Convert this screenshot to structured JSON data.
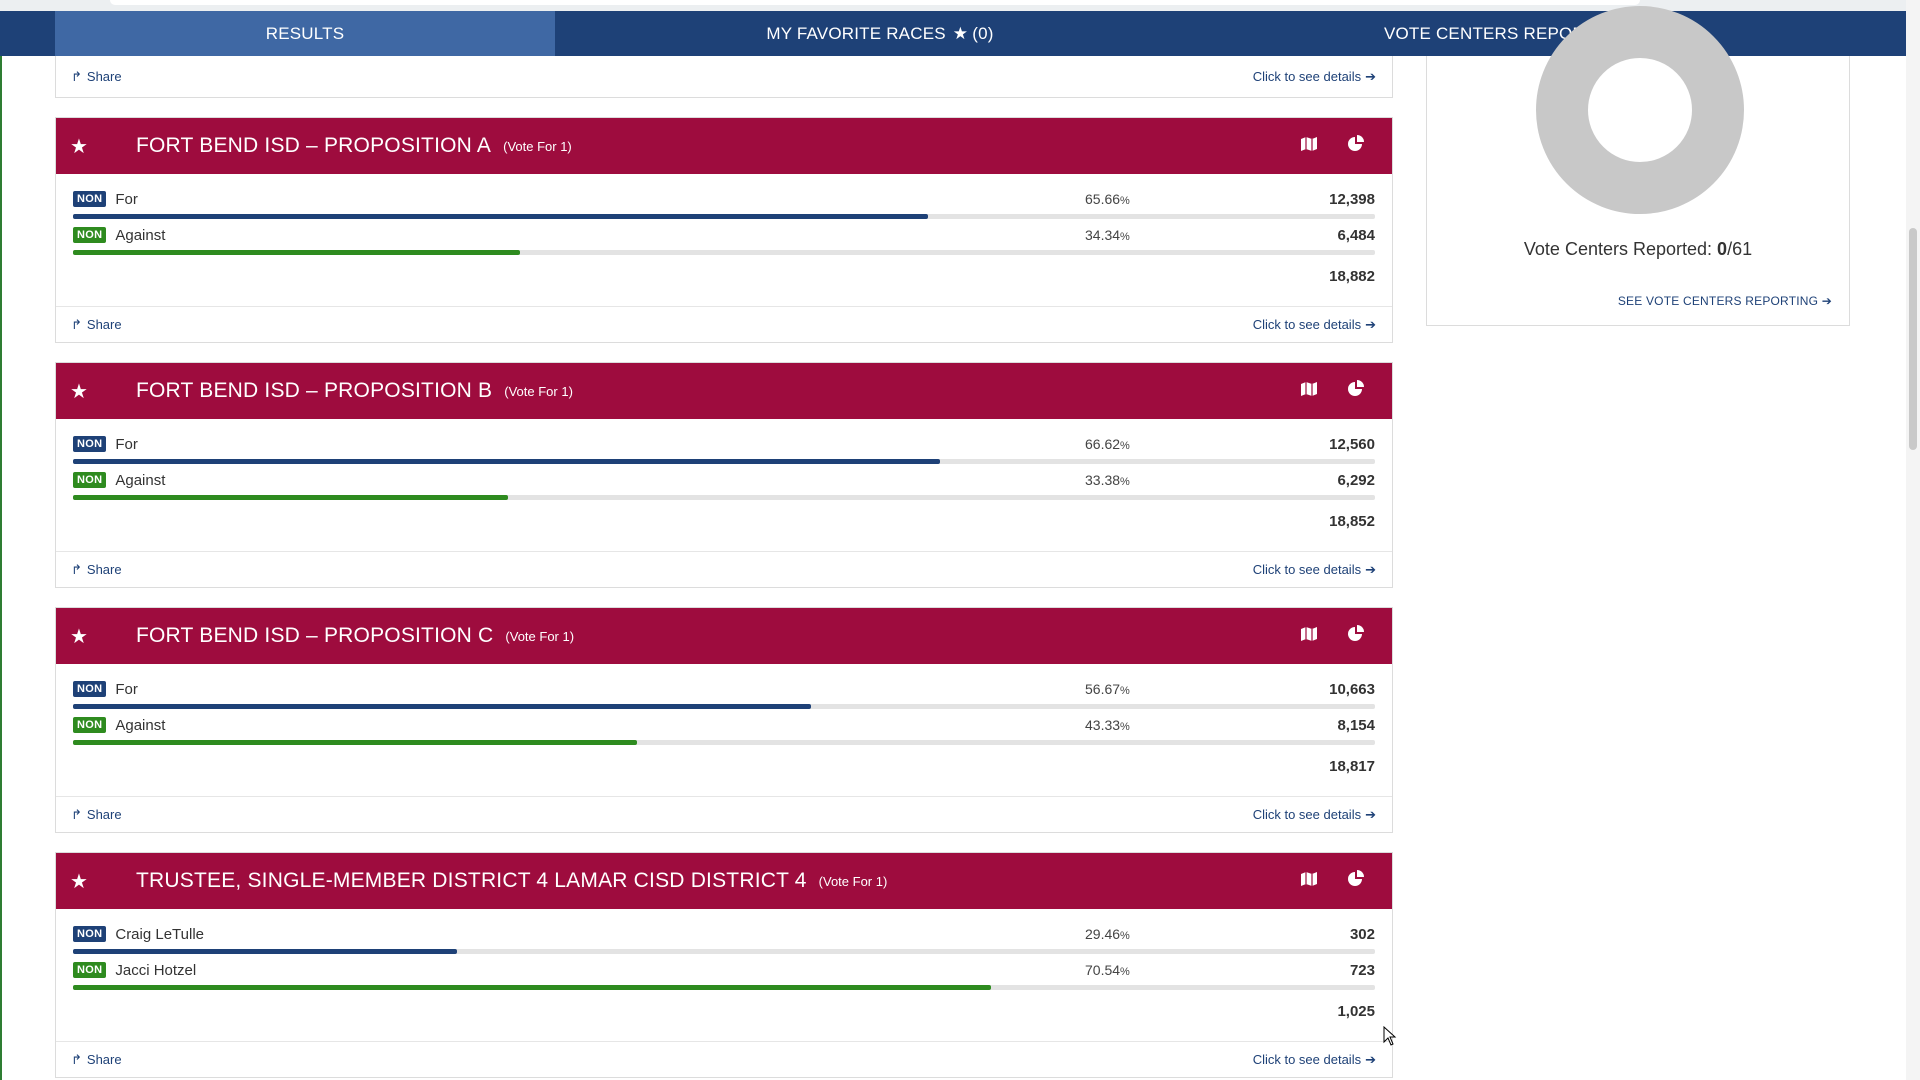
{
  "nav": {
    "results": "RESULTS",
    "favorites": "MY FAVORITE RACES",
    "favorites_count": "(0)",
    "vote_centers": "VOTE CENTERS REPORTING"
  },
  "common": {
    "share": "Share",
    "details": "Click to see details",
    "badge": "NON"
  },
  "races": [
    {
      "title": "FORT BEND ISD – PROPOSITION A",
      "vote_for": "(Vote For 1)",
      "candidates": [
        {
          "name": "For",
          "pct": "65.66",
          "votes": "12,398",
          "share": 0.6566,
          "color": "blue"
        },
        {
          "name": "Against",
          "pct": "34.34",
          "votes": "6,484",
          "share": 0.3434,
          "color": "green"
        }
      ],
      "total": "18,882"
    },
    {
      "title": "FORT BEND ISD – PROPOSITION B",
      "vote_for": "(Vote For 1)",
      "candidates": [
        {
          "name": "For",
          "pct": "66.62",
          "votes": "12,560",
          "share": 0.6662,
          "color": "blue"
        },
        {
          "name": "Against",
          "pct": "33.38",
          "votes": "6,292",
          "share": 0.3338,
          "color": "green"
        }
      ],
      "total": "18,852"
    },
    {
      "title": "FORT BEND ISD – PROPOSITION C",
      "vote_for": "(Vote For 1)",
      "candidates": [
        {
          "name": "For",
          "pct": "56.67",
          "votes": "10,663",
          "share": 0.5667,
          "color": "blue"
        },
        {
          "name": "Against",
          "pct": "43.33",
          "votes": "8,154",
          "share": 0.4333,
          "color": "green"
        }
      ],
      "total": "18,817"
    },
    {
      "title": "TRUSTEE, SINGLE-MEMBER DISTRICT 4 LAMAR CISD DISTRICT 4",
      "vote_for": "(Vote For 1)",
      "candidates": [
        {
          "name": "Craig LeTulle",
          "pct": "29.46",
          "votes": "302",
          "share": 0.2946,
          "color": "blue"
        },
        {
          "name": "Jacci Hotzel",
          "pct": "70.54",
          "votes": "723",
          "share": 0.7054,
          "color": "green"
        }
      ],
      "total": "1,025"
    }
  ],
  "vote_centers": {
    "label": "Vote Centers Reported:",
    "reported": "0",
    "total": "/61",
    "link": "SEE VOTE CENTERS REPORTING"
  }
}
